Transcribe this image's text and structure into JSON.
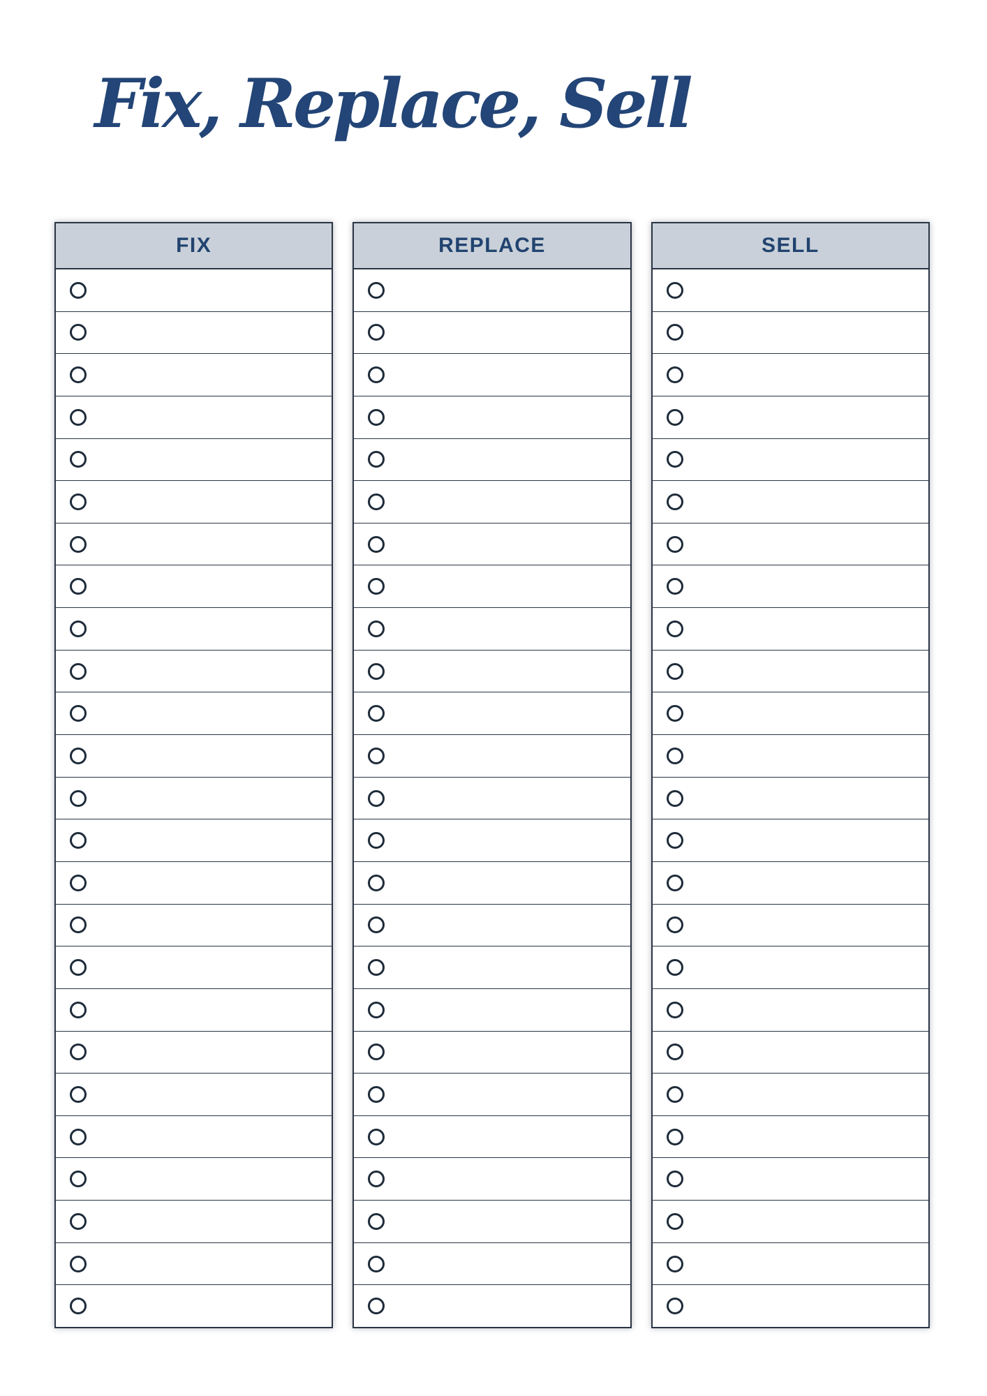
{
  "page": {
    "title": "Fix, Replace, Sell"
  },
  "colors": {
    "title_text": "#234577",
    "header_text": "#21436f",
    "header_background": "#c9d0d9",
    "table_border": "#2a3444",
    "row_border": "#2a3444",
    "circle_stroke": "#1e2b3a",
    "row_background": "#ffffff",
    "page_background": "#ffffff"
  },
  "checklist": {
    "row_bullet_icon": "empty-circle-icon",
    "columns": [
      {
        "id": "fix",
        "header": "FIX",
        "row_count": 25
      },
      {
        "id": "replace",
        "header": "REPLACE",
        "row_count": 25
      },
      {
        "id": "sell",
        "header": "SELL",
        "row_count": 25
      }
    ]
  }
}
